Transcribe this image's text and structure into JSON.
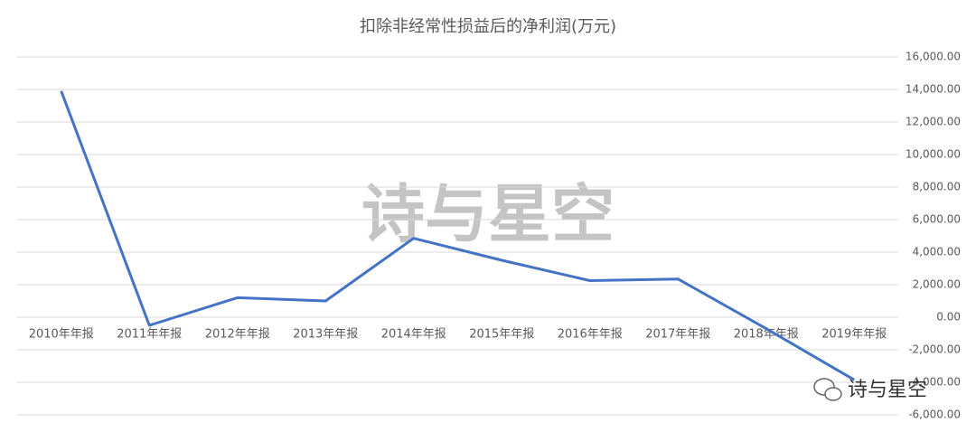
{
  "chart_data": {
    "type": "line",
    "title": "扣除非经常性损益后的净利润(万元)",
    "categories": [
      "2010年年报",
      "2011年年报",
      "2012年年报",
      "2013年年报",
      "2014年年报",
      "2015年年报",
      "2016年年报",
      "2017年年报",
      "2018年年报",
      "2019年年报"
    ],
    "values": [
      13900,
      -500,
      1200,
      1000,
      4850,
      3500,
      2250,
      2350,
      -700,
      -3850
    ],
    "color": "#4472c4",
    "ylim": [
      -6000,
      16000
    ],
    "yticks": [
      {
        "value": 16000,
        "label": "16,000.00"
      },
      {
        "value": 14000,
        "label": "14,000.00"
      },
      {
        "value": 12000,
        "label": "12,000.00"
      },
      {
        "value": 10000,
        "label": "10,000.00"
      },
      {
        "value": 8000,
        "label": "8,000.00"
      },
      {
        "value": 6000,
        "label": "6,000.00"
      },
      {
        "value": 4000,
        "label": "4,000.00"
      },
      {
        "value": 2000,
        "label": "2,000.00"
      },
      {
        "value": 0,
        "label": "0.00"
      },
      {
        "value": -2000,
        "label": "-2,000.00"
      },
      {
        "value": -4000,
        "label": "-4,000.00"
      },
      {
        "value": -6000,
        "label": "-6,000.00"
      }
    ],
    "grid": true,
    "y_axis_side": "right",
    "watermark": "诗与星空",
    "badge": "诗与星空"
  }
}
